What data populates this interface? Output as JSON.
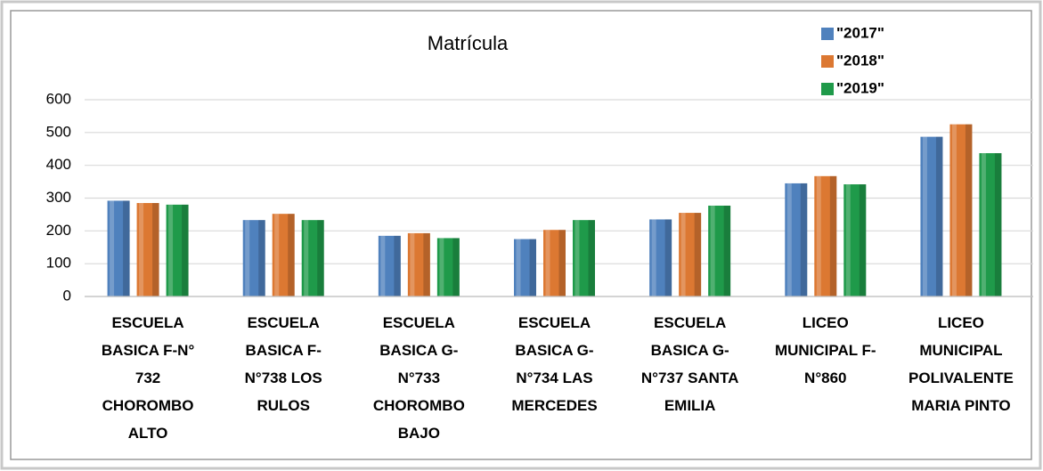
{
  "chart_data": {
    "type": "bar",
    "title": "Matrícula",
    "categories": [
      "ESCUELA BASICA F-N° 732 CHOROMBO ALTO",
      "ESCUELA BASICA F-N°738 LOS RULOS",
      "ESCUELA BASICA G-N°733 CHOROMBO BAJO",
      "ESCUELA BASICA G-N°734 LAS MERCEDES",
      "ESCUELA BASICA G-N°737 SANTA EMILIA",
      "LICEO MUNICIPAL F-N°860",
      "LICEO MUNICIPAL POLIVALENTE MARIA PINTO"
    ],
    "series": [
      {
        "name": "\"2017\"",
        "color": "#4f81bd",
        "values": [
          292,
          233,
          185,
          175,
          235,
          345,
          487
        ]
      },
      {
        "name": "\"2018\"",
        "color": "#dc7832",
        "values": [
          285,
          252,
          193,
          203,
          255,
          367,
          525
        ]
      },
      {
        "name": "\"2019\"",
        "color": "#1f9a4a",
        "values": [
          280,
          233,
          178,
          233,
          277,
          342,
          437
        ]
      }
    ],
    "ylim": [
      0,
      600
    ],
    "yticks": [
      0,
      100,
      200,
      300,
      400,
      500,
      600
    ],
    "grid": true,
    "legend": "top-right"
  }
}
